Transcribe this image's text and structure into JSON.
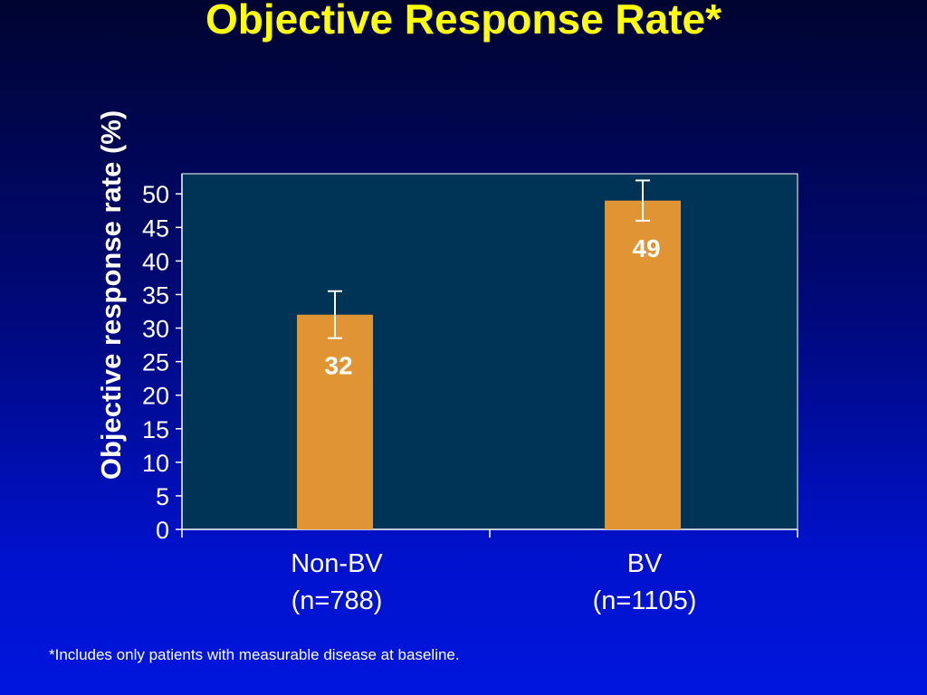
{
  "title": "Objective Response Rate*",
  "footnote": "*Includes only patients with measurable disease at baseline.",
  "colors": {
    "title": "#ffff00",
    "plot_bg": "#003456",
    "bar": "#e09433",
    "text": "#ffffff"
  },
  "chart_data": {
    "type": "bar",
    "title": "Objective Response Rate*",
    "ylabel": "Objective response rate (%)",
    "xlabel": "",
    "ylim": [
      0,
      53
    ],
    "yticks": [
      0,
      5,
      10,
      15,
      20,
      25,
      30,
      35,
      40,
      45,
      50
    ],
    "categories": [
      {
        "label": "Non-BV",
        "sublabel": "(n=788)"
      },
      {
        "label": "BV",
        "sublabel": "(n=1105)"
      }
    ],
    "values": [
      32,
      49
    ],
    "data_labels": [
      "32",
      "49"
    ],
    "error_bars": [
      {
        "low": 28.5,
        "high": 35.5
      },
      {
        "low": 46,
        "high": 52
      }
    ],
    "grid": false,
    "legend": "none"
  }
}
